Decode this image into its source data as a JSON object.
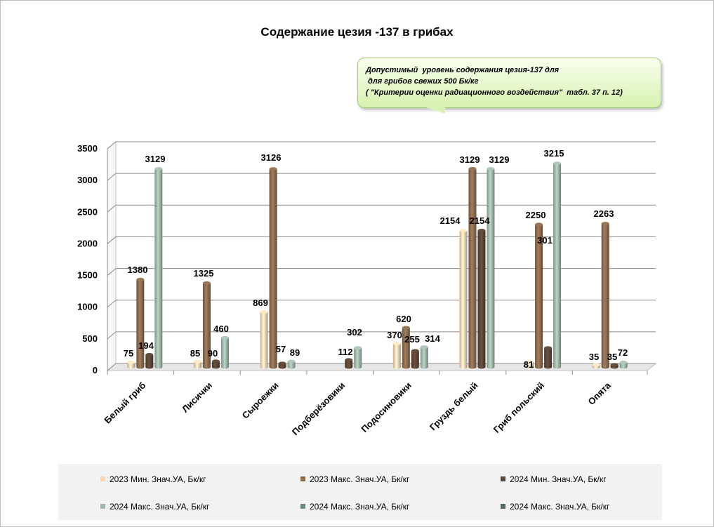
{
  "chart_data": {
    "type": "bar",
    "title": "Содержание  цезия -137 в грибах",
    "categories": [
      "Белый гриб",
      "Лисички",
      "Сыроежки",
      "Подберёзовики",
      "Подосиновики",
      "Груздь белый",
      "Гриб польский",
      "Опята"
    ],
    "ylim": [
      0,
      3500
    ],
    "yticks": [
      0,
      500,
      1000,
      1500,
      2000,
      2500,
      3000,
      3500
    ],
    "grid": true,
    "legend_position": "bottom",
    "series": [
      {
        "name": "2023  Мин. Знач.УА, Бк/кг",
        "color": "#fcd5b5",
        "values": [
          75,
          85,
          869,
          null,
          370,
          2154,
          81,
          35
        ]
      },
      {
        "name": "2023  Макс. Знач.УА, Бк/кг",
        "color": "#8b6b4e",
        "values": [
          1380,
          1325,
          3126,
          null,
          620,
          3129,
          2250,
          2263
        ]
      },
      {
        "name": "2024  Мин. Знач.УА, Бк/кг",
        "color": "#5c4636",
        "values": [
          194,
          90,
          57,
          112,
          255,
          2154,
          301,
          35
        ]
      },
      {
        "name": "2024  Макс. Знач.УА, Бк/кг",
        "color": "#9fb6a8",
        "values": [
          3129,
          460,
          89,
          302,
          314,
          3129,
          3215,
          72
        ]
      },
      {
        "name": "2024  Макс. Знач.УА, Бк/кг",
        "color": "#6e8c7c",
        "values": [
          null,
          null,
          null,
          null,
          null,
          null,
          null,
          null
        ]
      },
      {
        "name": "2024  Макс. Знач.УА, Бк/кг",
        "color": "#4f6b5a",
        "values": [
          null,
          null,
          null,
          null,
          null,
          null,
          null,
          null
        ]
      }
    ]
  },
  "callout": {
    "text": "Допустимый  уровень содержания цезия-137 для\n для грибов свежих 500 Бк/кг\n( \"Критерии оценки радиационного воздействия\"  табл. 37 п. 12)"
  }
}
